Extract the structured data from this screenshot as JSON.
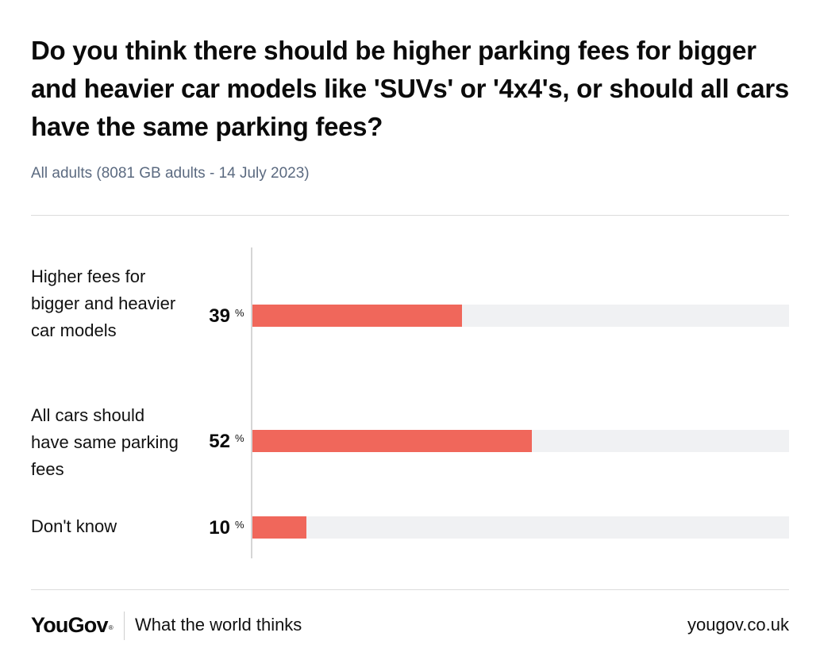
{
  "chart_data": {
    "type": "bar",
    "orientation": "horizontal",
    "title": "Do you think there should be higher parking fees for bigger and heavier car models like 'SUVs' or '4x4's, or should all cars have the same parking fees?",
    "subtitle": "All adults (8081 GB adults - 14 July 2023)",
    "categories": [
      "Higher fees for bigger and heavier car models",
      "All cars should have same parking fees",
      "Don't know"
    ],
    "values": [
      39,
      52,
      10
    ],
    "value_unit": "%",
    "xlim": [
      0,
      100
    ],
    "xlabel": "",
    "ylabel": "",
    "grid": false,
    "legend": "none",
    "colors": {
      "bar": "#f0675b",
      "track": "#f0f1f3"
    }
  },
  "footer": {
    "brand": "YouGov",
    "brand_mark": "®",
    "tagline": "What the world thinks",
    "url": "yougov.co.uk"
  }
}
